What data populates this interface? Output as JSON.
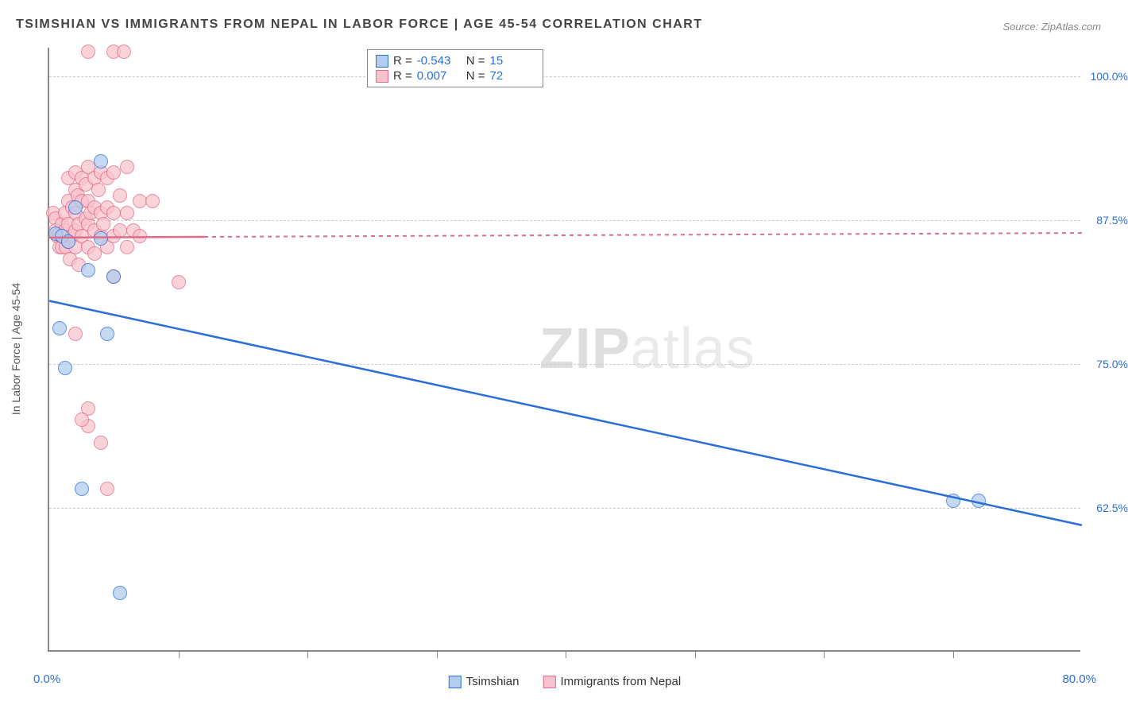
{
  "title": "TSIMSHIAN VS IMMIGRANTS FROM NEPAL IN LABOR FORCE | AGE 45-54 CORRELATION CHART",
  "source": "Source: ZipAtlas.com",
  "watermark_zip": "ZIP",
  "watermark_atlas": "atlas",
  "chart": {
    "type": "scatter",
    "x_axis": {
      "min": 0.0,
      "max": 80.0,
      "tick_step": 10.0,
      "label_left": "0.0%",
      "label_right": "80.0%"
    },
    "y_axis": {
      "min": 50.0,
      "max": 102.5,
      "ticks": [
        62.5,
        75.0,
        87.5,
        100.0
      ],
      "tick_labels": [
        "62.5%",
        "75.0%",
        "87.5%",
        "100.0%"
      ],
      "title": "In Labor Force | Age 45-54",
      "label_color": "#2a6fd6"
    },
    "grid_color": "#cccccc",
    "axis_color": "#888888",
    "background_color": "#ffffff",
    "title_fontsize": 16,
    "label_fontsize": 14,
    "series": [
      {
        "name": "Tsimshian",
        "fill": "#b4cdee",
        "stroke": "#2a6fd6",
        "marker_radius": 9,
        "trend": {
          "x1": 0.0,
          "y1": 80.5,
          "x2": 80.0,
          "y2": 61.0,
          "dash": "none"
        },
        "R_label": "R =",
        "R_value": "-0.543",
        "N_label": "N =",
        "N_value": "15",
        "points": [
          {
            "x": 0.5,
            "y": 86.2
          },
          {
            "x": 1.0,
            "y": 86.0
          },
          {
            "x": 1.5,
            "y": 85.5
          },
          {
            "x": 2.0,
            "y": 88.5
          },
          {
            "x": 4.0,
            "y": 92.5
          },
          {
            "x": 3.0,
            "y": 83.0
          },
          {
            "x": 5.0,
            "y": 82.5
          },
          {
            "x": 0.8,
            "y": 78.0
          },
          {
            "x": 4.5,
            "y": 77.5
          },
          {
            "x": 1.2,
            "y": 74.5
          },
          {
            "x": 2.5,
            "y": 64.0
          },
          {
            "x": 5.5,
            "y": 55.0
          },
          {
            "x": 70.0,
            "y": 63.0
          },
          {
            "x": 72.0,
            "y": 63.0
          },
          {
            "x": 4.0,
            "y": 85.8
          }
        ]
      },
      {
        "name": "Immigrants from Nepal",
        "fill": "#f7c3ce",
        "stroke": "#e06a87",
        "marker_radius": 9,
        "trend": {
          "x1": 0.0,
          "y1": 86.0,
          "x2": 80.0,
          "y2": 86.4,
          "dash": "5,5",
          "solid_until": 12.0
        },
        "R_label": "R =",
        "R_value": "0.007",
        "N_label": "N =",
        "N_value": "72",
        "points": [
          {
            "x": 3.0,
            "y": 102.0
          },
          {
            "x": 5.0,
            "y": 102.0
          },
          {
            "x": 5.8,
            "y": 102.0
          },
          {
            "x": 0.3,
            "y": 88.0
          },
          {
            "x": 0.5,
            "y": 87.5
          },
          {
            "x": 0.5,
            "y": 86.5
          },
          {
            "x": 0.6,
            "y": 86.0
          },
          {
            "x": 0.8,
            "y": 86.2
          },
          {
            "x": 0.8,
            "y": 85.0
          },
          {
            "x": 1.0,
            "y": 87.0
          },
          {
            "x": 1.0,
            "y": 86.0
          },
          {
            "x": 1.0,
            "y": 85.0
          },
          {
            "x": 1.2,
            "y": 88.0
          },
          {
            "x": 1.2,
            "y": 86.5
          },
          {
            "x": 1.3,
            "y": 85.0
          },
          {
            "x": 1.5,
            "y": 91.0
          },
          {
            "x": 1.5,
            "y": 89.0
          },
          {
            "x": 1.5,
            "y": 87.0
          },
          {
            "x": 1.5,
            "y": 85.5
          },
          {
            "x": 1.6,
            "y": 84.0
          },
          {
            "x": 1.8,
            "y": 88.5
          },
          {
            "x": 1.8,
            "y": 86.0
          },
          {
            "x": 2.0,
            "y": 91.5
          },
          {
            "x": 2.0,
            "y": 90.0
          },
          {
            "x": 2.0,
            "y": 88.0
          },
          {
            "x": 2.0,
            "y": 86.5
          },
          {
            "x": 2.0,
            "y": 85.0
          },
          {
            "x": 2.2,
            "y": 89.5
          },
          {
            "x": 2.3,
            "y": 87.0
          },
          {
            "x": 2.3,
            "y": 83.5
          },
          {
            "x": 2.5,
            "y": 91.0
          },
          {
            "x": 2.5,
            "y": 89.0
          },
          {
            "x": 2.5,
            "y": 86.0
          },
          {
            "x": 2.8,
            "y": 90.5
          },
          {
            "x": 2.8,
            "y": 87.5
          },
          {
            "x": 3.0,
            "y": 92.0
          },
          {
            "x": 3.0,
            "y": 89.0
          },
          {
            "x": 3.0,
            "y": 87.0
          },
          {
            "x": 3.0,
            "y": 85.0
          },
          {
            "x": 3.2,
            "y": 88.0
          },
          {
            "x": 3.5,
            "y": 91.0
          },
          {
            "x": 3.5,
            "y": 88.5
          },
          {
            "x": 3.5,
            "y": 86.5
          },
          {
            "x": 3.5,
            "y": 84.5
          },
          {
            "x": 3.8,
            "y": 90.0
          },
          {
            "x": 4.0,
            "y": 91.5
          },
          {
            "x": 4.0,
            "y": 88.0
          },
          {
            "x": 4.0,
            "y": 86.0
          },
          {
            "x": 4.2,
            "y": 87.0
          },
          {
            "x": 4.5,
            "y": 91.0
          },
          {
            "x": 4.5,
            "y": 88.5
          },
          {
            "x": 4.5,
            "y": 85.0
          },
          {
            "x": 5.0,
            "y": 91.5
          },
          {
            "x": 5.0,
            "y": 88.0
          },
          {
            "x": 5.0,
            "y": 86.0
          },
          {
            "x": 5.0,
            "y": 82.5
          },
          {
            "x": 5.5,
            "y": 89.5
          },
          {
            "x": 5.5,
            "y": 86.5
          },
          {
            "x": 6.0,
            "y": 92.0
          },
          {
            "x": 6.0,
            "y": 88.0
          },
          {
            "x": 6.0,
            "y": 85.0
          },
          {
            "x": 6.5,
            "y": 86.5
          },
          {
            "x": 7.0,
            "y": 89.0
          },
          {
            "x": 7.0,
            "y": 86.0
          },
          {
            "x": 8.0,
            "y": 89.0
          },
          {
            "x": 10.0,
            "y": 82.0
          },
          {
            "x": 2.0,
            "y": 77.5
          },
          {
            "x": 3.0,
            "y": 69.5
          },
          {
            "x": 4.0,
            "y": 68.0
          },
          {
            "x": 4.5,
            "y": 64.0
          },
          {
            "x": 3.0,
            "y": 71.0
          },
          {
            "x": 2.5,
            "y": 70.0
          }
        ]
      }
    ],
    "bottom_legend": [
      {
        "name": "Tsimshian",
        "fill": "#b4cdee",
        "stroke": "#2a6fd6"
      },
      {
        "name": "Immigrants from Nepal",
        "fill": "#f7c3ce",
        "stroke": "#e06a87"
      }
    ]
  }
}
